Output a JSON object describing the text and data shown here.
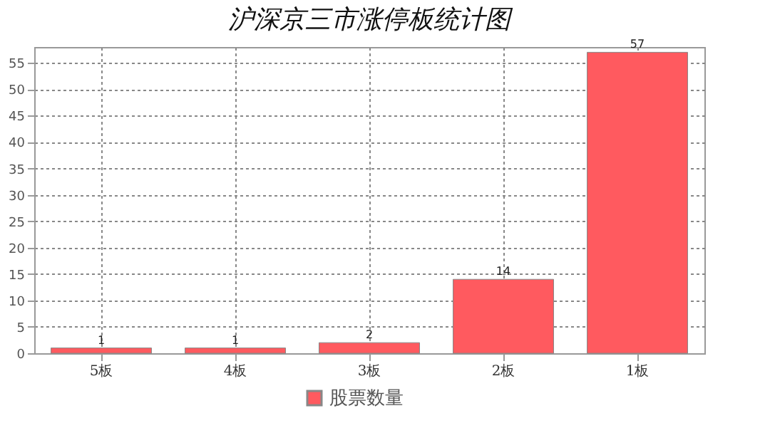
{
  "chart_data": {
    "type": "bar",
    "title": "沪深京三市涨停板统计图",
    "categories": [
      "5板",
      "4板",
      "3板",
      "2板",
      "1板"
    ],
    "series": [
      {
        "name": "股票数量",
        "color": "#ff5a5f",
        "values": [
          1,
          1,
          2,
          14,
          57
        ]
      }
    ],
    "ylim": [
      0,
      58
    ],
    "yticks": [
      0,
      5,
      10,
      15,
      20,
      25,
      30,
      35,
      40,
      45,
      50,
      55
    ],
    "grid": true,
    "legend": "bottom",
    "data_labels": true
  }
}
